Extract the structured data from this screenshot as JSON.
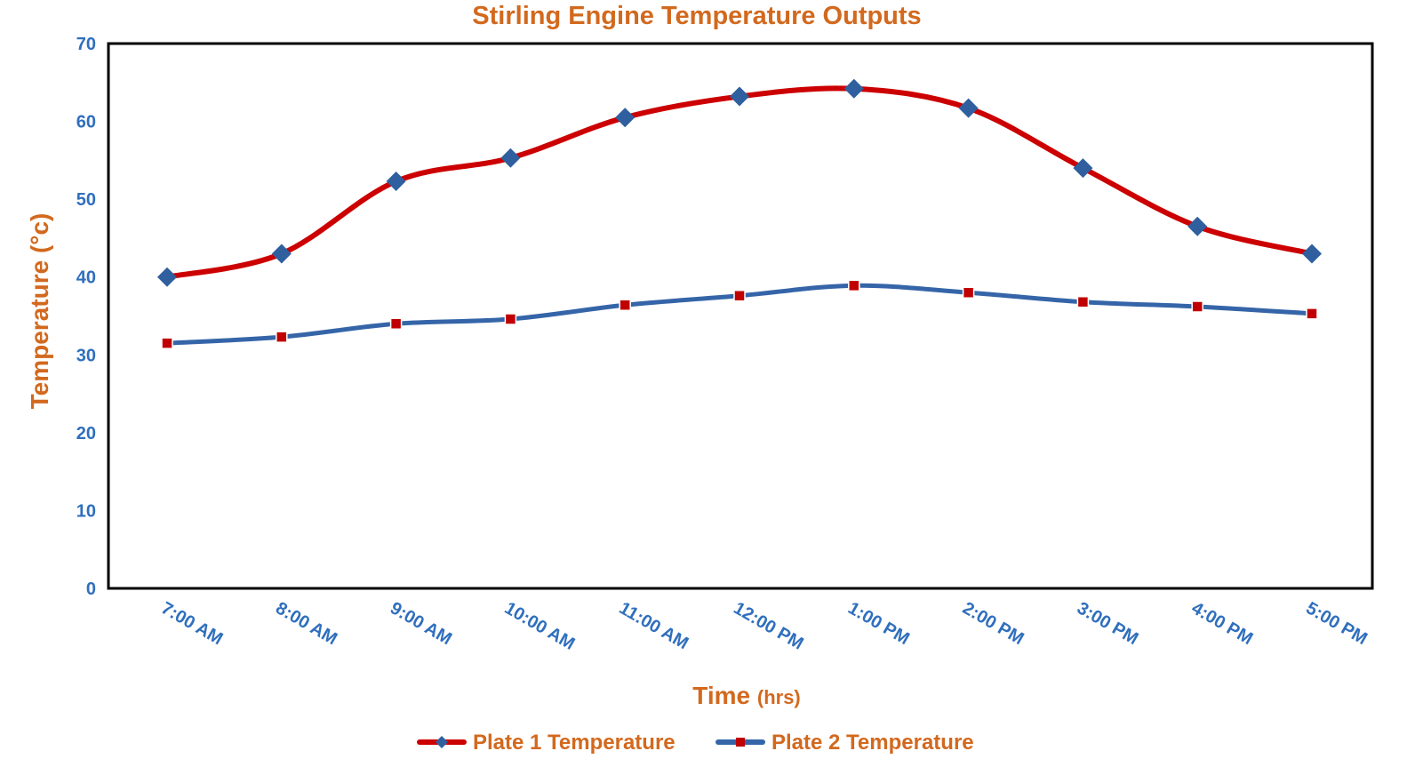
{
  "colors": {
    "title": "#d2691e",
    "tick": "#2f6fbd",
    "plate1": "#cc0000",
    "plate1_marker": "#2f5f9e",
    "plate2": "#3565a8",
    "plate2_marker": "#c00000",
    "frame": "#000000"
  },
  "chart_data": {
    "type": "line",
    "title": "Stirling Engine Temperature Outputs",
    "xlabel": "Time",
    "xlabel_unit": "(hrs)",
    "ylabel": "Temperature (°c)",
    "ylim": [
      0,
      70
    ],
    "yticks": [
      0,
      10,
      20,
      30,
      40,
      50,
      60,
      70
    ],
    "grid": false,
    "legend_position": "bottom",
    "categories": [
      "7:00 AM",
      "8:00 AM",
      "9:00 AM",
      "10:00 AM",
      "11:00 AM",
      "12:00 PM",
      "1:00 PM",
      "2:00 PM",
      "3:00 PM",
      "4:00 PM",
      "5:00 PM"
    ],
    "series": [
      {
        "name": "Plate 1 Temperature",
        "marker": "diamond",
        "values": [
          40,
          43,
          52.3,
          55.3,
          60.5,
          63.2,
          64.2,
          61.7,
          54,
          46.5,
          43
        ]
      },
      {
        "name": "Plate 2 Temperature",
        "marker": "square",
        "values": [
          31.5,
          32.3,
          34,
          34.6,
          36.4,
          37.6,
          38.9,
          38,
          36.8,
          36.2,
          35.3
        ]
      }
    ]
  }
}
